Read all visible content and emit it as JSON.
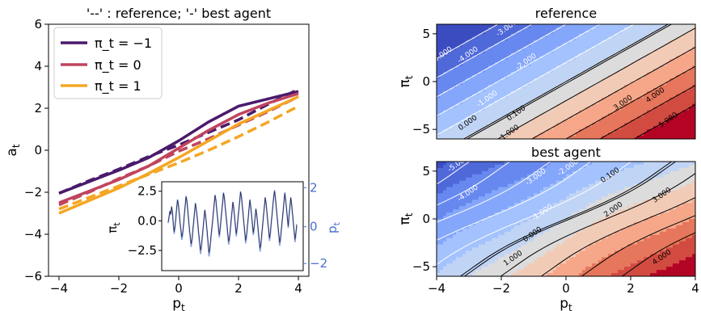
{
  "chart_data": [
    {
      "type": "line",
      "title": "'--' : reference; '-' best agent",
      "xlabel": "p_t",
      "ylabel": "a_t",
      "xlim": [
        -4.35,
        4.35
      ],
      "ylim": [
        -6,
        6
      ],
      "xticks": [
        "-4",
        "-2",
        "0",
        "2",
        "4"
      ],
      "yticks": [
        "-6",
        "-4",
        "-2",
        "0",
        "2",
        "4",
        "6"
      ],
      "legend": {
        "placement": "top-left",
        "entries": [
          "π_t = −1",
          "π_t = 0",
          "π_t = 1"
        ]
      },
      "colors": {
        "pi_m1": "#4a1a6b",
        "pi_0": "#c0445f",
        "pi_1": "#f5a623"
      },
      "series": [
        {
          "legend": "π_t = −1",
          "color": "#4a1a6b",
          "style": "solid",
          "x": [
            -4,
            -3,
            -2,
            -1,
            0,
            1,
            2,
            3,
            4
          ],
          "y": [
            -2.05,
            -1.5,
            -0.95,
            -0.35,
            0.45,
            1.35,
            2.1,
            2.45,
            2.8
          ]
        },
        {
          "legend": "π_t = −1",
          "color": "#4a1a6b",
          "style": "dashed",
          "x": [
            -4,
            -3,
            -2,
            -1,
            0,
            1,
            2,
            3,
            4
          ],
          "y": [
            -2.05,
            -1.45,
            -0.9,
            -0.3,
            0.25,
            0.85,
            1.45,
            2.2,
            2.9
          ]
        },
        {
          "legend": "π_t = 0",
          "color": "#c0445f",
          "style": "solid",
          "x": [
            -4,
            -3,
            -2,
            -1,
            0,
            1,
            2,
            3,
            4
          ],
          "y": [
            -2.5,
            -1.95,
            -1.4,
            -0.75,
            0.1,
            0.95,
            1.7,
            2.25,
            2.7
          ]
        },
        {
          "legend": "π_t = 0",
          "color": "#c0445f",
          "style": "dashed",
          "x": [
            -4,
            -3,
            -2,
            -1,
            0,
            1,
            2,
            3,
            4
          ],
          "y": [
            -2.6,
            -2.0,
            -1.35,
            -0.75,
            -0.05,
            0.55,
            1.2,
            1.85,
            2.55
          ]
        },
        {
          "legend": "π_t = 1",
          "color": "#f5a623",
          "style": "solid",
          "x": [
            -4,
            -3,
            -2,
            -1,
            0,
            1,
            2,
            3,
            4
          ],
          "y": [
            -3.0,
            -2.4,
            -1.8,
            -1.1,
            -0.35,
            0.45,
            1.25,
            1.9,
            2.55
          ]
        },
        {
          "legend": "π_t = 1",
          "color": "#f5a623",
          "style": "dashed",
          "x": [
            -4,
            -3,
            -2,
            -1,
            0,
            1,
            2,
            3,
            4
          ],
          "y": [
            -2.8,
            -2.25,
            -1.7,
            -1.15,
            -0.6,
            0.0,
            0.65,
            1.35,
            2.1
          ]
        }
      ]
    },
    {
      "type": "line",
      "title": "",
      "ylabel_left": "π_t",
      "ylabel_right": "p_t",
      "left_yticks": [
        "2.5",
        "0.0",
        "−2.5"
      ],
      "right_yticks": [
        "2",
        "0",
        "−2"
      ],
      "left_ylim": [
        -4.2,
        3.3
      ],
      "right_color": "#4a6fd0",
      "series_colors": [
        "#2b2b4a",
        "#6a8bd8"
      ],
      "series": [
        {
          "name": "",
          "color": "#2b2b4a",
          "y": [
            -0.2,
            0.3,
            0.8,
            0.5,
            1.2,
            0.7,
            -0.3,
            -1.1,
            -0.6,
            0.2,
            1.1,
            1.8,
            1.4,
            0.6,
            -0.2,
            -0.9,
            -1.6,
            -1.2,
            -0.4,
            0.5,
            1.3,
            2.1,
            1.7,
            0.9,
            0.0,
            -0.8,
            -1.5,
            -2.2,
            -1.7,
            -0.9,
            -0.1,
            0.7,
            1.5,
            1.0,
            0.3,
            -0.5,
            -1.3,
            -2.0,
            -2.8,
            -2.3,
            -1.5,
            -0.7,
            0.1,
            0.9,
            0.4,
            -0.4,
            -1.2,
            -2.1,
            -3.0,
            -2.5,
            -1.7,
            -0.9,
            -0.2,
            0.6,
            1.4,
            2.2,
            1.8,
            1.0,
            0.2,
            -0.6,
            -1.4,
            -0.8,
            0.0,
            0.8,
            1.6,
            2.4,
            2.0,
            1.2,
            0.4,
            -0.4,
            -1.2,
            -2.0,
            -1.6,
            -0.8,
            0.0,
            0.8,
            1.6,
            1.1,
            0.3,
            -0.5,
            -1.3,
            -0.7,
            0.1,
            0.9,
            1.7,
            2.5,
            2.1,
            1.3,
            0.5,
            -0.3,
            -1.1,
            -1.9,
            -1.4,
            -0.6,
            0.2,
            1.0,
            1.8,
            1.2,
            0.4,
            -0.4,
            -1.2,
            -0.6,
            0.2,
            1.0,
            0.5,
            -0.3,
            -1.1,
            -1.9,
            -2.6,
            -2.0,
            -1.2,
            -0.4,
            0.4,
            1.2,
            2.0,
            1.5,
            0.7,
            -0.1,
            -0.9,
            -1.7,
            -1.1,
            -0.3,
            0.5,
            1.3,
            2.1,
            2.6,
            1.9,
            1.1,
            0.3,
            -0.5,
            -1.3,
            -2.1,
            -1.6,
            -0.8,
            0.0,
            0.8,
            1.6,
            2.4,
            1.8,
            1.0,
            0.2,
            -0.6,
            0.4,
            1.2,
            2.0,
            1.4,
            0.6,
            -0.2,
            -1.0,
            -1.8,
            -1.2,
            -0.4
          ]
        }
      ]
    },
    {
      "type": "heatmap",
      "title": "reference",
      "xlabel": "",
      "ylabel": "π_t",
      "xlim": [
        -4,
        4
      ],
      "ylim": [
        -6,
        6
      ],
      "xticks": [],
      "yticks": [
        "−5",
        "0",
        "5"
      ],
      "levels": [
        -5.0,
        -4.0,
        -3.0,
        -2.0,
        -1.0,
        0.0,
        0.1,
        1.0,
        2.0,
        3.0,
        4.0,
        5.0
      ],
      "level_labels": [
        "−5.000",
        "−4.000",
        "−3.000",
        "−2.000",
        "−1.000",
        "0.000",
        "0.100",
        "1.000",
        "2.000",
        "3.000",
        "4.000",
        "5.000"
      ],
      "contour_labels": [
        {
          "text": "-5.000",
          "x": -3.8,
          "y": 2.6
        },
        {
          "text": "-4.000",
          "x": -3.0,
          "y": 2.6
        },
        {
          "text": "-3.000",
          "x": -1.8,
          "y": 5.4
        },
        {
          "text": "-2.000",
          "x": -1.2,
          "y": 1.9
        },
        {
          "text": "-1.000",
          "x": -2.4,
          "y": -2.0
        },
        {
          "text": "0.100",
          "x": -1.5,
          "y": -3.5
        },
        {
          "text": "0.000",
          "x": -3.0,
          "y": -4.5
        },
        {
          "text": "3.000",
          "x": 1.8,
          "y": -2.4
        },
        {
          "text": "4.000",
          "x": 2.8,
          "y": -1.6
        },
        {
          "text": "5.000",
          "x": 3.2,
          "y": -4.2
        },
        {
          "text": "1.000",
          "x": -1.7,
          "y": -5.5
        }
      ]
    },
    {
      "type": "heatmap",
      "title": "best agent",
      "xlabel": "p_t",
      "ylabel": "π_t",
      "xlim": [
        -4,
        4
      ],
      "ylim": [
        -6,
        6
      ],
      "xticks": [
        "−4",
        "−2",
        "0",
        "2",
        "4"
      ],
      "yticks": [
        "−5",
        "0",
        "5"
      ],
      "levels": [
        -5.0,
        -4.0,
        -3.0,
        -2.0,
        -1.0,
        0.0,
        0.1,
        1.0,
        2.0,
        3.0,
        4.0
      ],
      "contour_labels": [
        {
          "text": "-5.000",
          "x": -3.3,
          "y": 5.6
        },
        {
          "text": "-4.000",
          "x": -3.0,
          "y": 2.5
        },
        {
          "text": "-3.000",
          "x": -0.9,
          "y": 4.2
        },
        {
          "text": "-2.000",
          "x": 0.1,
          "y": 5.2
        },
        {
          "text": "0.100",
          "x": 1.4,
          "y": 4.4
        },
        {
          "text": "-1.000",
          "x": -0.7,
          "y": 0.5
        },
        {
          "text": "0.000",
          "x": -1.0,
          "y": -1.8
        },
        {
          "text": "1.000",
          "x": -1.6,
          "y": -4.3
        },
        {
          "text": "2.000",
          "x": 1.5,
          "y": 0.8
        },
        {
          "text": "3.000",
          "x": 3.0,
          "y": 2.3
        },
        {
          "text": "4.000",
          "x": 3.0,
          "y": -4.2
        }
      ]
    }
  ],
  "labels": {
    "xlabel_main": "p",
    "xlabel_main_sub": "t",
    "ylabel_main": "a",
    "ylabel_main_sub": "t",
    "inset_left": "π",
    "inset_left_sub": "t",
    "inset_right": "p",
    "inset_right_sub": "t",
    "heat_ylabel": "π",
    "heat_ylabel_sub": "t",
    "heat_xlabel": "p",
    "heat_xlabel_sub": "t"
  }
}
